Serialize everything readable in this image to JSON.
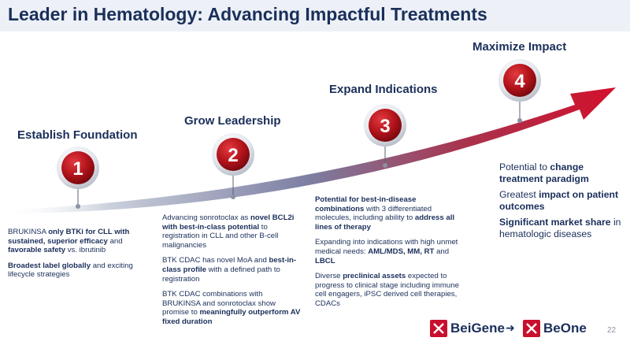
{
  "title": "Leader in Hematology: Advancing Impactful Treatments",
  "stages": [
    {
      "number": "1",
      "label": "Establish Foundation"
    },
    {
      "number": "2",
      "label": "Grow Leadership"
    },
    {
      "number": "3",
      "label": "Expand Indications"
    },
    {
      "number": "4",
      "label": "Maximize Impact"
    }
  ],
  "stage1": {
    "p1": [
      {
        "t": "BRUKINSA ",
        "b": false
      },
      {
        "t": "only BTKi for CLL with sustained, superior efficacy",
        "b": true
      },
      {
        "t": " and ",
        "b": false
      },
      {
        "t": "favorable safety",
        "b": true
      },
      {
        "t": " vs. ibrutinib",
        "b": false
      }
    ],
    "p2": [
      {
        "t": "Broadest label globally",
        "b": true
      },
      {
        "t": " and exciting lifecycle strategies",
        "b": false
      }
    ]
  },
  "stage2": {
    "p1": [
      {
        "t": "Advancing sonrotoclax as ",
        "b": false
      },
      {
        "t": "novel BCL2i with best-in-class potential",
        "b": true
      },
      {
        "t": " to registration in CLL and other B-cell malignancies",
        "b": false
      }
    ],
    "p2": [
      {
        "t": "BTK CDAC has novel MoA and ",
        "b": false
      },
      {
        "t": "best-in-class profile",
        "b": true
      },
      {
        "t": " with a defined path to registration",
        "b": false
      }
    ],
    "p3": [
      {
        "t": "BTK CDAC combinations with BRUKINSA and sonrotoclax show promise to ",
        "b": false
      },
      {
        "t": "meaningfully outperform AV fixed duration",
        "b": true
      }
    ]
  },
  "stage3": {
    "p1": [
      {
        "t": "Potential for best-in-disease combinations",
        "b": true
      },
      {
        "t": " with 3 differentiated molecules, including ability to ",
        "b": false
      },
      {
        "t": "address all lines of therapy",
        "b": true
      }
    ],
    "p2": [
      {
        "t": "Expanding into indications with high unmet medical needs: ",
        "b": false
      },
      {
        "t": "AML/MDS, MM, RT",
        "b": true
      },
      {
        "t": " and ",
        "b": false
      },
      {
        "t": "LBCL",
        "b": true
      }
    ],
    "p3": [
      {
        "t": "Diverse ",
        "b": false
      },
      {
        "t": "preclinical assets",
        "b": true
      },
      {
        "t": " expected to progress to clinical stage including immune cell engagers, iPSC derived cell therapies, CDACs",
        "b": false
      }
    ]
  },
  "stage4": {
    "p1": [
      {
        "t": "Potential to ",
        "b": false
      },
      {
        "t": "change treatment paradigm",
        "b": true
      }
    ],
    "p2": [
      {
        "t": "Greatest ",
        "b": false
      },
      {
        "t": "impact on patient outcomes",
        "b": true
      }
    ],
    "p3": [
      {
        "t": "Significant market share",
        "b": true
      },
      {
        "t": " in hematologic diseases",
        "b": false
      }
    ]
  },
  "footer": {
    "logo_old": "BeiGene",
    "logo_new": "BeOne",
    "arrow": "➜",
    "page_number": "22"
  },
  "colors": {
    "navy": "#1a2f5a",
    "red": "#b3131b",
    "arrow_red": "#c8102e"
  }
}
